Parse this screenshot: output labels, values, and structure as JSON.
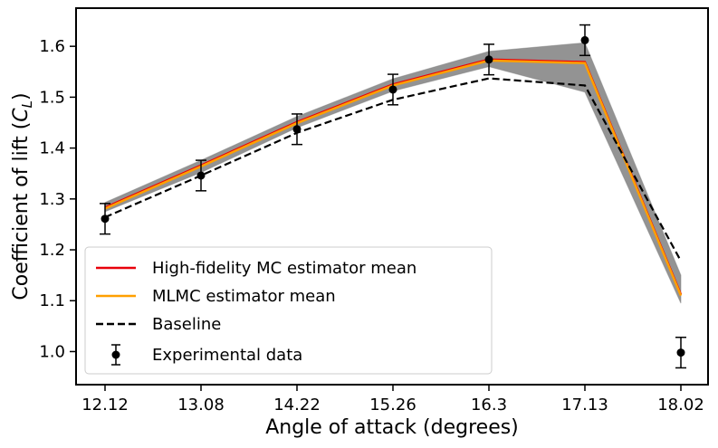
{
  "chart_data": {
    "type": "line",
    "xlabel": "Angle of attack (degrees)",
    "ylabel_main": "Coefficient of lift (",
    "ylabel_sym": "C",
    "ylabel_sub": "L",
    "ylabel_close": ")",
    "x_tick_labels": [
      "12.12",
      "13.08",
      "14.22",
      "15.26",
      "16.3",
      "17.13",
      "18.02"
    ],
    "y_ticks": [
      1.0,
      1.1,
      1.2,
      1.3,
      1.4,
      1.5,
      1.6
    ],
    "y_tick_labels": [
      "1.0",
      "1.1",
      "1.2",
      "1.3",
      "1.4",
      "1.5",
      "1.6"
    ],
    "ylim": [
      0.935,
      1.675
    ],
    "grid": false,
    "legend_position": "lower-left",
    "series": [
      {
        "name": "High-fidelity MC estimator mean",
        "color": "#e8000b",
        "style": "solid",
        "values": [
          1.283,
          1.366,
          1.451,
          1.525,
          1.574,
          1.569,
          1.112
        ]
      },
      {
        "name": "MLMC estimator mean",
        "color": "#ff9f00",
        "style": "solid",
        "values": [
          1.281,
          1.364,
          1.449,
          1.523,
          1.572,
          1.567,
          1.11
        ]
      },
      {
        "name": "Baseline",
        "color": "#000000",
        "style": "dashed",
        "values": [
          1.264,
          1.346,
          1.43,
          1.495,
          1.537,
          1.523,
          1.178
        ]
      }
    ],
    "experimental": {
      "name": "Experimental data",
      "color": "#000000",
      "values": [
        1.261,
        1.346,
        1.437,
        1.515,
        1.574,
        1.612,
        0.998
      ],
      "errors": [
        0.03,
        0.03,
        0.03,
        0.03,
        0.03,
        0.03,
        0.03
      ]
    },
    "band": {
      "color": "#808080",
      "upper": [
        1.293,
        1.376,
        1.462,
        1.536,
        1.59,
        1.607,
        1.15
      ],
      "lower": [
        1.275,
        1.352,
        1.44,
        1.512,
        1.56,
        1.51,
        1.095
      ]
    }
  }
}
